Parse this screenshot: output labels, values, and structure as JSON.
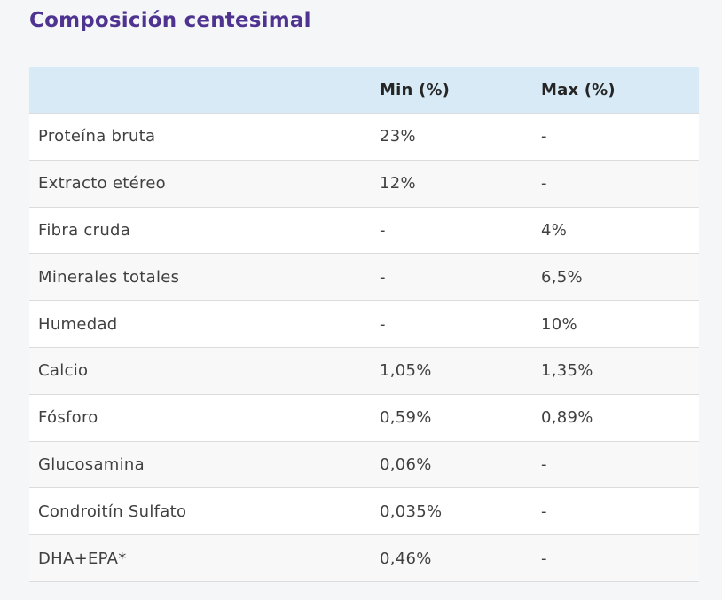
{
  "page": {
    "title": "Composición centesimal"
  },
  "table": {
    "header": {
      "label": "",
      "min": "Min (%)",
      "max": "Max (%)"
    },
    "rows": [
      {
        "label": "Proteína bruta",
        "min": "23%",
        "max": "-"
      },
      {
        "label": "Extracto etéreo",
        "min": "12%",
        "max": "-"
      },
      {
        "label": "Fibra cruda",
        "min": "-",
        "max": "4%"
      },
      {
        "label": "Minerales totales",
        "min": "-",
        "max": "6,5%"
      },
      {
        "label": "Humedad",
        "min": "-",
        "max": "10%"
      },
      {
        "label": "Calcio",
        "min": "1,05%",
        "max": "1,35%"
      },
      {
        "label": "Fósforo",
        "min": "0,59%",
        "max": "0,89%"
      },
      {
        "label": "Glucosamina",
        "min": "0,06%",
        "max": "-"
      },
      {
        "label": "Condroitín Sulfato",
        "min": "0,035%",
        "max": "-"
      },
      {
        "label": "DHA+EPA*",
        "min": "0,46%",
        "max": "-"
      }
    ]
  },
  "colors": {
    "page_bg": "#f5f6f7",
    "header_bg": "#d7eaf5",
    "row_alt_bg": "#f8f8f9",
    "border": "#dcdcdd",
    "title": "#4e3391",
    "header_text": "#252525",
    "text": "#404040"
  }
}
